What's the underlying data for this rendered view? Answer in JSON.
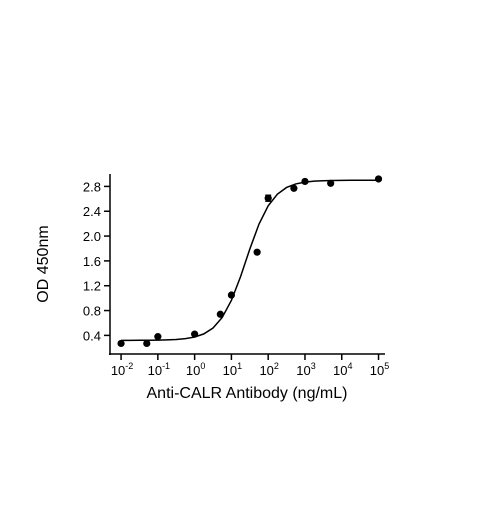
{
  "chart_data": {
    "type": "scatter",
    "x_label": "Anti-CALR Antibody (ng/mL)",
    "y_label": "OD 450nm",
    "xscale": "log",
    "xlim": [
      0.005,
      150000
    ],
    "ylim": [
      0.1,
      3.0
    ],
    "xticks": [
      {
        "value": 0.01,
        "label": "10",
        "exponent": "-2"
      },
      {
        "value": 0.1,
        "label": "10",
        "exponent": "-1"
      },
      {
        "value": 1,
        "label": "10",
        "exponent": "0"
      },
      {
        "value": 10,
        "label": "10",
        "exponent": "1"
      },
      {
        "value": 100,
        "label": "10",
        "exponent": "2"
      },
      {
        "value": 1000,
        "label": "10",
        "exponent": "3"
      },
      {
        "value": 10000,
        "label": "10",
        "exponent": "4"
      },
      {
        "value": 100000,
        "label": "10",
        "exponent": "5"
      }
    ],
    "yticks": [
      0.4,
      0.8,
      1.2,
      1.6,
      {
        "value": 2,
        "label": "2.0"
      },
      2.4,
      2.8
    ],
    "color": "#000000",
    "points": {
      "x": [
        0.01,
        0.05,
        0.1,
        1,
        5,
        10,
        50,
        100,
        500,
        1000,
        5000,
        100000
      ],
      "values": [
        0.27,
        0.27,
        0.38,
        0.42,
        0.74,
        1.05,
        1.74,
        2.61,
        2.77,
        2.88,
        2.85,
        2.92
      ],
      "errors": [
        null,
        null,
        null,
        null,
        null,
        null,
        null,
        0.05,
        null,
        null,
        null,
        null
      ]
    },
    "fit": {
      "x": [
        0.01,
        0.0178,
        0.0316,
        0.0562,
        0.1,
        0.178,
        0.316,
        0.562,
        1,
        1.78,
        3.16,
        5.62,
        10,
        17.8,
        31.6,
        56.2,
        100,
        178,
        316,
        562,
        1000,
        1778,
        3162,
        5623,
        10000,
        17783,
        31623,
        56234,
        100000
      ],
      "values": [
        0.32,
        0.32,
        0.321,
        0.322,
        0.323,
        0.327,
        0.334,
        0.347,
        0.373,
        0.424,
        0.519,
        0.689,
        0.964,
        1.349,
        1.79,
        2.192,
        2.488,
        2.676,
        2.783,
        2.84,
        2.869,
        2.885,
        2.892,
        2.896,
        2.898,
        2.9,
        2.9,
        2.9,
        2.9
      ]
    }
  }
}
